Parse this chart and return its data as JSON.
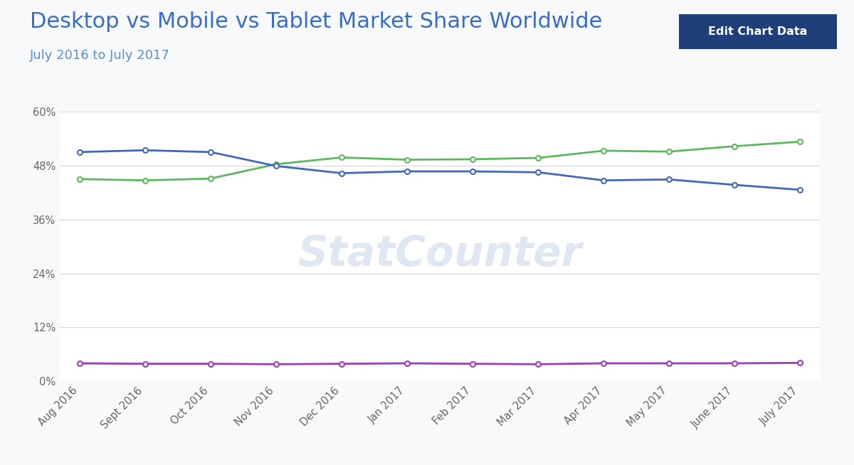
{
  "title": "Desktop vs Mobile vs Tablet Market Share Worldwide",
  "subtitle": "July 2016 to July 2017",
  "x_labels": [
    "Aug 2016",
    "Sept 2016",
    "Oct 2016",
    "Nov 2016",
    "Dec 2016",
    "Jan 2017",
    "Feb 2017",
    "Mar 2017",
    "Apr 2017",
    "May 2017",
    "June 2017",
    "July 2017"
  ],
  "mobile": [
    45.0,
    44.7,
    45.1,
    48.3,
    49.8,
    49.3,
    49.4,
    49.7,
    51.3,
    51.1,
    52.3,
    53.3
  ],
  "desktop": [
    51.0,
    51.4,
    51.0,
    47.9,
    46.3,
    46.7,
    46.7,
    46.5,
    44.7,
    44.9,
    43.7,
    42.6
  ],
  "tablet": [
    4.0,
    3.9,
    3.9,
    3.8,
    3.9,
    4.0,
    3.9,
    3.8,
    4.0,
    4.0,
    4.0,
    4.1
  ],
  "mobile_color": "#5cb85c",
  "desktop_color": "#4169b8",
  "tablet_color": "#9b3db8",
  "bg_color": "#f8f9fa",
  "plot_bg_color": "#ffffff",
  "grid_color": "#d8d8d8",
  "ylim": [
    0,
    60
  ],
  "yticks": [
    0,
    12,
    24,
    36,
    48,
    60
  ],
  "ytick_labels": [
    "0%",
    "12%",
    "24%",
    "36%",
    "48%",
    "60%"
  ],
  "title_color": "#3a6dc9",
  "subtitle_color": "#5b8dd9",
  "title_fontsize": 22,
  "subtitle_fontsize": 13,
  "button_bg": "#1e3f7a",
  "button_text": "Edit Chart Data",
  "watermark_color": "#c5d5e8",
  "watermark_alpha": 0.55
}
